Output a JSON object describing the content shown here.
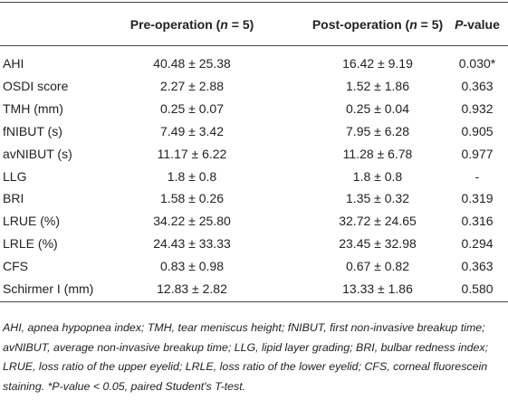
{
  "table": {
    "header": [
      [
        {
          "text": "Pre-operation ("
        },
        {
          "text": "n",
          "italic": true
        },
        {
          "text": " = 5)"
        }
      ],
      [
        {
          "text": "Post-operation ("
        },
        {
          "text": "n",
          "italic": true
        },
        {
          "text": " = 5)"
        }
      ],
      [
        {
          "text": "P",
          "italic": true
        },
        {
          "text": "-value"
        }
      ]
    ],
    "rows": [
      [
        "AHI",
        "40.48 ± 25.38",
        "16.42 ± 9.19",
        "0.030*"
      ],
      [
        "OSDI score",
        "2.27 ± 2.88",
        "1.52 ± 1.86",
        "0.363"
      ],
      [
        "TMH (mm)",
        "0.25 ± 0.07",
        "0.25 ± 0.04",
        "0.932"
      ],
      [
        "fNIBUT (s)",
        "7.49 ± 3.42",
        "7.95 ± 6.28",
        "0.905"
      ],
      [
        "avNIBUT (s)",
        "11.17 ± 6.22",
        "11.28 ± 6.78",
        "0.977"
      ],
      [
        "LLG",
        "1.8 ± 0.8",
        "1.8 ± 0.8",
        "-"
      ],
      [
        "BRI",
        "1.58 ± 0.26",
        "1.35 ± 0.32",
        "0.319"
      ],
      [
        "LRUE (%)",
        "34.22 ± 25.80",
        "32.72 ± 24.65",
        "0.316"
      ],
      [
        "LRLE (%)",
        "24.43 ± 33.33",
        "23.45 ± 32.98",
        "0.294"
      ],
      [
        "CFS",
        "0.83 ± 0.98",
        "0.67 ± 0.82",
        "0.363"
      ],
      [
        "Schirmer I (mm)",
        "12.83 ± 2.82",
        "13.33 ± 1.86",
        "0.580"
      ]
    ],
    "footnote": "AHI, apnea hypopnea index; TMH, tear meniscus height; fNIBUT, first non-invasive breakup time; avNIBUT, average non-invasive breakup time; LLG, lipid layer grading; BRI, bulbar redness index; LRUE, loss ratio of the upper eyelid; LRLE, loss ratio of the lower eyelid; CFS, corneal fluorescein staining. *P-value < 0.05, paired Student's T-test."
  }
}
